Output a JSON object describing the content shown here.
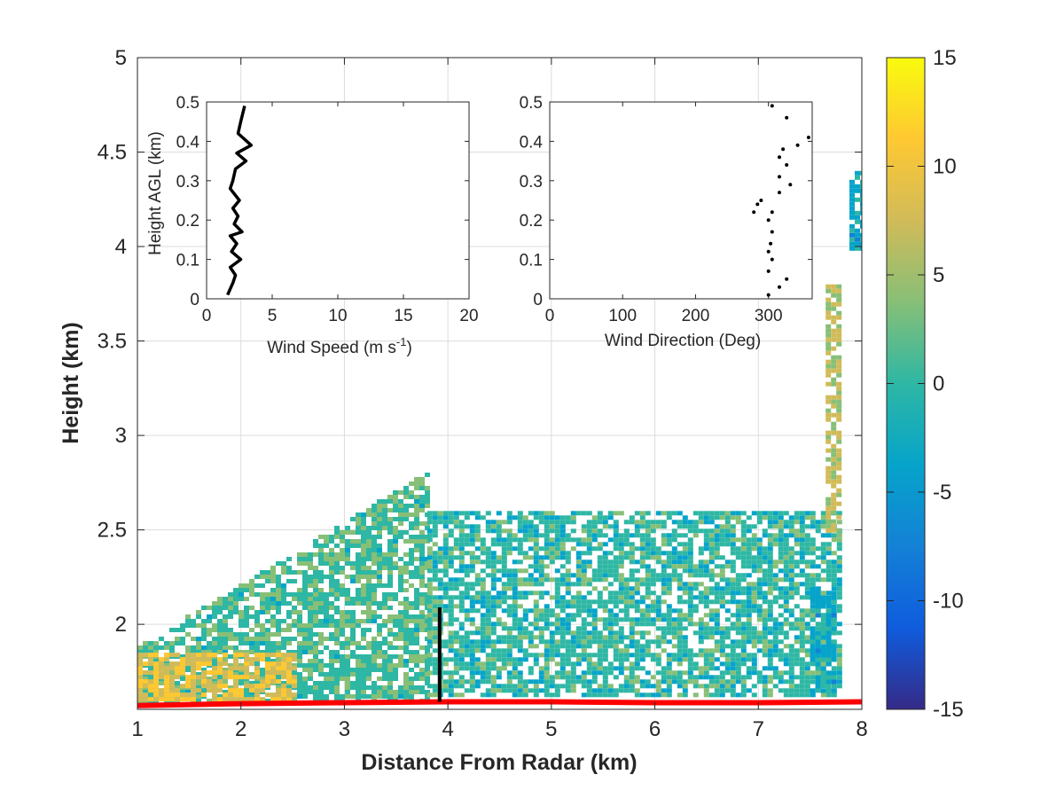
{
  "chart_data": [
    {
      "type": "heatmap",
      "xlabel": "Distance From Radar (km)",
      "ylabel": "Height (km)",
      "xlim": [
        1,
        8
      ],
      "ylim": [
        1.55,
        5
      ],
      "xticks": [
        "1",
        "2",
        "3",
        "4",
        "5",
        "6",
        "7",
        "8"
      ],
      "yticks": [
        "2",
        "2.5",
        "3",
        "3.5",
        "4",
        "4.5",
        "5"
      ],
      "grid": true,
      "colorbar": {
        "range": [
          -15,
          15
        ],
        "ticks": [
          "15",
          "10",
          "5",
          "0",
          "-5",
          "-10",
          "-15"
        ],
        "colormap": "parula",
        "colors": [
          "#352a87",
          "#0f5cdd",
          "#1481d6",
          "#06a4ca",
          "#2eb7a4",
          "#87bf77",
          "#d1bb59",
          "#fec832",
          "#f9fb0e"
        ]
      },
      "ground_line": {
        "color": "#ff0000",
        "x": [
          1,
          2,
          3,
          4,
          5,
          6,
          7,
          8
        ],
        "y": [
          1.57,
          1.58,
          1.585,
          1.59,
          1.59,
          1.585,
          1.585,
          1.59
        ]
      },
      "profile_marker": {
        "color": "#000000",
        "x": 3.92,
        "y": [
          1.59,
          2.09
        ]
      },
      "velocity_regions": [
        {
          "x": [
            1.0,
            3.8
          ],
          "y": [
            1.6,
            2.85
          ],
          "value": 1
        },
        {
          "x": [
            1.0,
            2.5
          ],
          "y": [
            1.6,
            1.85
          ],
          "value": 9
        },
        {
          "x": [
            3.8,
            7.8
          ],
          "y": [
            1.62,
            2.6
          ],
          "value": 0
        },
        {
          "x": [
            7.65,
            7.8
          ],
          "y": [
            2.5,
            3.8
          ],
          "value": 6
        },
        {
          "x": [
            7.5,
            7.75
          ],
          "y": [
            1.65,
            2.2
          ],
          "value": -3
        },
        {
          "x": [
            7.88,
            8.0
          ],
          "y": [
            4.0,
            4.4
          ],
          "value": -3
        }
      ]
    },
    {
      "type": "line",
      "xlabel": "Wind Speed (m s",
      "xlabel_sup": "-1",
      "xlabel_end": ")",
      "ylabel": "Height AGL (km)",
      "xlim": [
        0,
        20
      ],
      "ylim": [
        0,
        0.5
      ],
      "xticks": [
        "0",
        "5",
        "10",
        "15",
        "20"
      ],
      "yticks": [
        "0",
        "0.1",
        "0.2",
        "0.3",
        "0.4",
        "0.5"
      ],
      "series": [
        {
          "color": "#000000",
          "x": [
            1.6,
            2.0,
            2.2,
            1.8,
            2.6,
            1.9,
            2.3,
            1.8,
            2.7,
            2.1,
            2.4,
            2.0,
            2.5,
            1.8,
            2.0,
            2.2,
            3.0,
            2.3,
            3.4,
            2.4,
            2.6,
            2.9
          ],
          "y": [
            0.01,
            0.04,
            0.06,
            0.08,
            0.1,
            0.12,
            0.14,
            0.16,
            0.17,
            0.19,
            0.21,
            0.23,
            0.25,
            0.28,
            0.3,
            0.33,
            0.35,
            0.37,
            0.39,
            0.42,
            0.45,
            0.49
          ]
        }
      ]
    },
    {
      "type": "scatter",
      "xlabel": "Wind Direction (Deg)",
      "xlim": [
        0,
        360
      ],
      "ylim": [
        0,
        0.5
      ],
      "xticks": [
        "0",
        "100",
        "200",
        "300"
      ],
      "yticks": [
        "0",
        "0.1",
        "0.2",
        "0.3",
        "0.4",
        "0.5"
      ],
      "series": [
        {
          "color": "#000000",
          "x": [
            300,
            315,
            325,
            300,
            305,
            300,
            303,
            305,
            300,
            305,
            285,
            280,
            290,
            315,
            330,
            315,
            325,
            315,
            320,
            340,
            355,
            325,
            305
          ],
          "y": [
            0.01,
            0.03,
            0.05,
            0.07,
            0.1,
            0.12,
            0.14,
            0.17,
            0.2,
            0.22,
            0.24,
            0.22,
            0.25,
            0.27,
            0.29,
            0.31,
            0.34,
            0.36,
            0.38,
            0.39,
            0.41,
            0.46,
            0.49
          ]
        }
      ]
    }
  ]
}
